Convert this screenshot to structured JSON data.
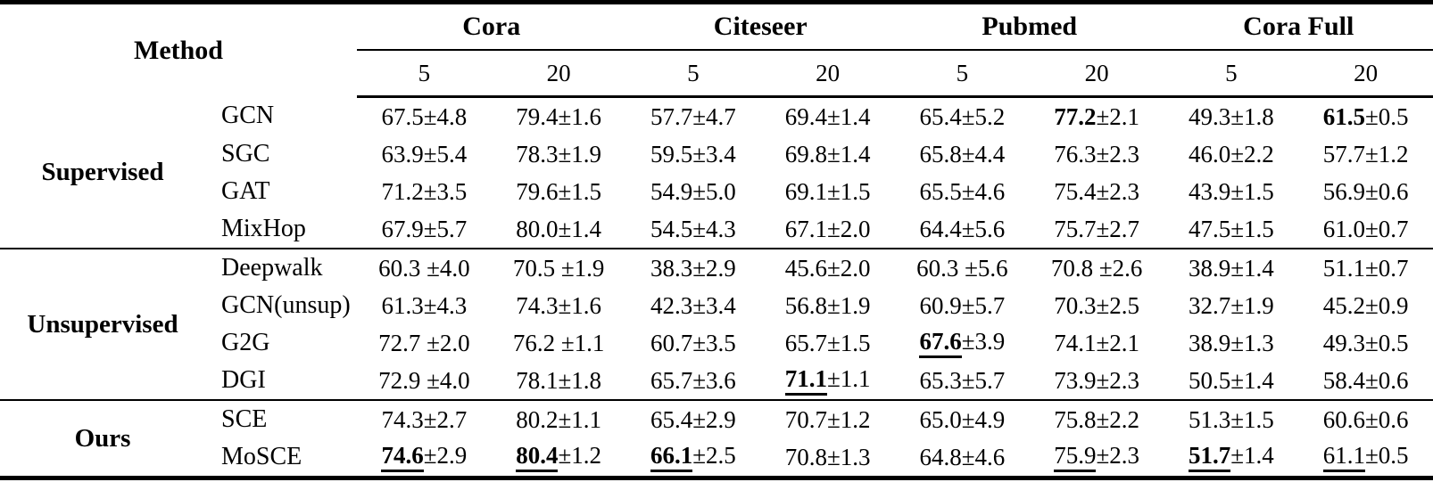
{
  "colors": {
    "text": "#000000",
    "background": "#ffffff",
    "rule": "#000000"
  },
  "table": {
    "method_header": "Method",
    "pm": "±",
    "datasets": [
      {
        "name": "Cora",
        "cols": [
          "5",
          "20"
        ]
      },
      {
        "name": "Citeseer",
        "cols": [
          "5",
          "20"
        ]
      },
      {
        "name": "Pubmed",
        "cols": [
          "5",
          "20"
        ]
      },
      {
        "name": "Cora Full",
        "cols": [
          "5",
          "20"
        ]
      }
    ],
    "groups": [
      {
        "label": "Supervised",
        "rows": [
          {
            "method": "GCN",
            "cells": [
              {
                "v": "67.5",
                "e": "4.8"
              },
              {
                "v": "79.4",
                "e": "1.6"
              },
              {
                "v": "57.7",
                "e": "4.7"
              },
              {
                "v": "69.4",
                "e": "1.4"
              },
              {
                "v": "65.4",
                "e": "5.2"
              },
              {
                "v": "77.2",
                "e": "2.1",
                "st": "b"
              },
              {
                "v": "49.3",
                "e": "1.8"
              },
              {
                "v": "61.5",
                "e": "0.5",
                "st": "b"
              }
            ]
          },
          {
            "method": "SGC",
            "cells": [
              {
                "v": "63.9",
                "e": "5.4"
              },
              {
                "v": "78.3",
                "e": "1.9"
              },
              {
                "v": "59.5",
                "e": "3.4"
              },
              {
                "v": "69.8",
                "e": "1.4"
              },
              {
                "v": "65.8",
                "e": "4.4"
              },
              {
                "v": "76.3",
                "e": "2.3"
              },
              {
                "v": "46.0",
                "e": "2.2"
              },
              {
                "v": "57.7",
                "e": "1.2"
              }
            ]
          },
          {
            "method": "GAT",
            "cells": [
              {
                "v": "71.2",
                "e": "3.5"
              },
              {
                "v": "79.6",
                "e": "1.5"
              },
              {
                "v": "54.9",
                "e": "5.0"
              },
              {
                "v": "69.1",
                "e": "1.5"
              },
              {
                "v": "65.5",
                "e": "4.6"
              },
              {
                "v": "75.4",
                "e": "2.3"
              },
              {
                "v": "43.9",
                "e": "1.5"
              },
              {
                "v": "56.9",
                "e": "0.6"
              }
            ]
          },
          {
            "method": "MixHop",
            "cells": [
              {
                "v": "67.9",
                "e": "5.7"
              },
              {
                "v": "80.0",
                "e": "1.4"
              },
              {
                "v": "54.5",
                "e": "4.3"
              },
              {
                "v": "67.1",
                "e": "2.0"
              },
              {
                "v": "64.4",
                "e": "5.6"
              },
              {
                "v": "75.7",
                "e": "2.7"
              },
              {
                "v": "47.5",
                "e": "1.5"
              },
              {
                "v": "61.0",
                "e": "0.7"
              }
            ]
          }
        ]
      },
      {
        "label": "Unsupervised",
        "rows": [
          {
            "method": "Deepwalk",
            "cells": [
              {
                "v": "60.3",
                "e": "4.0",
                "sp": 1
              },
              {
                "v": "70.5",
                "e": "1.9",
                "sp": 1
              },
              {
                "v": "38.3",
                "e": "2.9"
              },
              {
                "v": "45.6",
                "e": "2.0"
              },
              {
                "v": "60.3",
                "e": "5.6",
                "sp": 1
              },
              {
                "v": "70.8",
                "e": "2.6",
                "sp": 1
              },
              {
                "v": "38.9",
                "e": "1.4"
              },
              {
                "v": "51.1",
                "e": "0.7"
              }
            ]
          },
          {
            "method": "GCN(unsup)",
            "cells": [
              {
                "v": "61.3",
                "e": "4.3"
              },
              {
                "v": "74.3",
                "e": "1.6"
              },
              {
                "v": "42.3",
                "e": "3.4"
              },
              {
                "v": "56.8",
                "e": "1.9"
              },
              {
                "v": "60.9",
                "e": "5.7"
              },
              {
                "v": "70.3",
                "e": "2.5"
              },
              {
                "v": "32.7",
                "e": "1.9"
              },
              {
                "v": "45.2",
                "e": "0.9"
              }
            ]
          },
          {
            "method": "G2G",
            "cells": [
              {
                "v": "72.7",
                "e": "2.0",
                "sp": 1
              },
              {
                "v": "76.2",
                "e": "1.1",
                "sp": 1
              },
              {
                "v": "60.7",
                "e": "3.5"
              },
              {
                "v": "65.7",
                "e": "1.5"
              },
              {
                "v": "67.6",
                "e": "3.9",
                "st": "bu"
              },
              {
                "v": "74.1",
                "e": "2.1"
              },
              {
                "v": "38.9",
                "e": "1.3"
              },
              {
                "v": "49.3",
                "e": "0.5"
              }
            ]
          },
          {
            "method": "DGI",
            "cells": [
              {
                "v": "72.9",
                "e": "4.0",
                "sp": 1
              },
              {
                "v": "78.1",
                "e": "1.8"
              },
              {
                "v": "65.7",
                "e": "3.6"
              },
              {
                "v": "71.1",
                "e": "1.1",
                "st": "bu"
              },
              {
                "v": "65.3",
                "e": "5.7"
              },
              {
                "v": "73.9",
                "e": "2.3"
              },
              {
                "v": "50.5",
                "e": "1.4"
              },
              {
                "v": "58.4",
                "e": "0.6"
              }
            ]
          }
        ]
      },
      {
        "label": "Ours",
        "rows": [
          {
            "method": "SCE",
            "cells": [
              {
                "v": "74.3",
                "e": "2.7"
              },
              {
                "v": "80.2",
                "e": "1.1"
              },
              {
                "v": "65.4",
                "e": "2.9"
              },
              {
                "v": "70.7",
                "e": "1.2"
              },
              {
                "v": "65.0",
                "e": "4.9"
              },
              {
                "v": "75.8",
                "e": "2.2"
              },
              {
                "v": "51.3",
                "e": "1.5"
              },
              {
                "v": "60.6",
                "e": "0.6"
              }
            ]
          },
          {
            "method": "MoSCE",
            "cells": [
              {
                "v": "74.6",
                "e": "2.9",
                "st": "bu"
              },
              {
                "v": "80.4",
                "e": "1.2",
                "st": "bu"
              },
              {
                "v": "66.1",
                "e": "2.5",
                "st": "bu"
              },
              {
                "v": "70.8",
                "e": "1.3"
              },
              {
                "v": "64.8",
                "e": "4.6"
              },
              {
                "v": "75.9",
                "e": "2.3",
                "st": "u"
              },
              {
                "v": "51.7",
                "e": "1.4",
                "st": "bu"
              },
              {
                "v": "61.1",
                "e": "0.5",
                "st": "u"
              }
            ]
          }
        ]
      }
    ]
  }
}
